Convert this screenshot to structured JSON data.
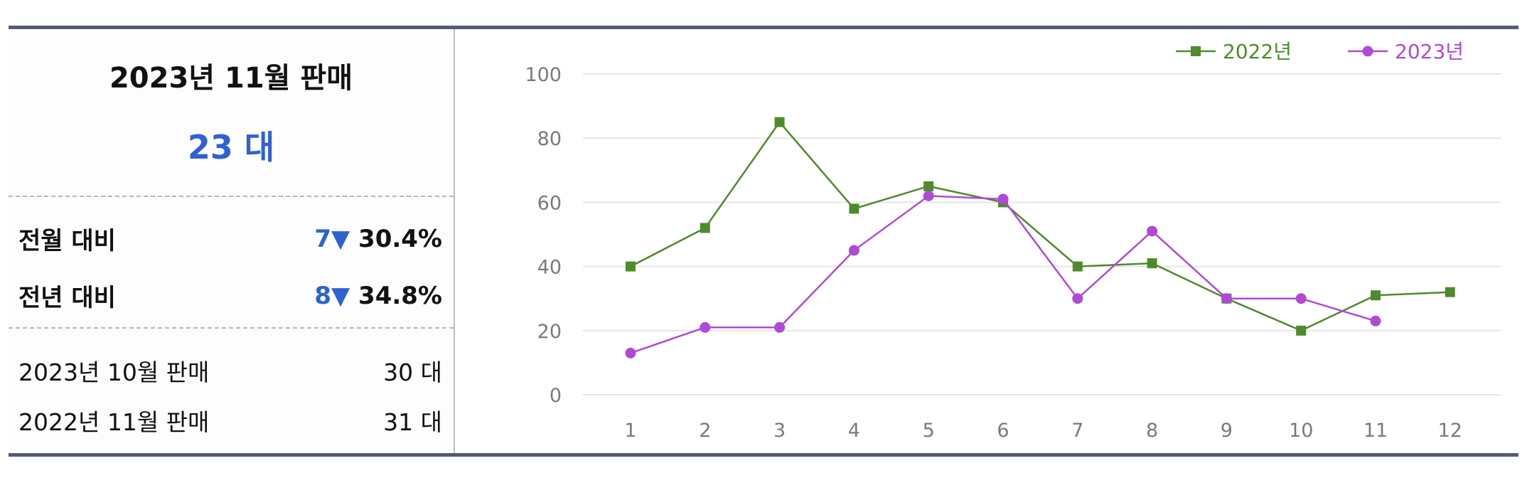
{
  "summary": {
    "title": "2023년 11월 판매",
    "total": "23 대",
    "rows": [
      {
        "label": "전월 대비",
        "diff": "7▼",
        "pct": "30.4%"
      },
      {
        "label": "전년 대비",
        "diff": "8▼",
        "pct": "34.8%"
      }
    ],
    "details": [
      {
        "label": "2023년 10월 판매",
        "value": "30 대"
      },
      {
        "label": "2022년 11월 판매",
        "value": "31 대"
      }
    ]
  },
  "colors": {
    "accent": "#2e62d4",
    "series_2022": "#4f8a2b",
    "series_2023": "#b04ad6"
  },
  "chart_data": {
    "type": "line",
    "x": [
      1,
      2,
      3,
      4,
      5,
      6,
      7,
      8,
      9,
      10,
      11,
      12
    ],
    "ylim": [
      0,
      100
    ],
    "yticks": [
      0,
      20,
      40,
      60,
      80,
      100
    ],
    "grid": true,
    "legend": "top-right",
    "series": [
      {
        "name": "2022년",
        "values": [
          40,
          52,
          85,
          58,
          65,
          60,
          40,
          41,
          30,
          20,
          31,
          32
        ]
      },
      {
        "name": "2023년",
        "values": [
          13,
          21,
          21,
          45,
          62,
          61,
          30,
          51,
          30,
          30,
          23,
          null
        ]
      }
    ]
  }
}
